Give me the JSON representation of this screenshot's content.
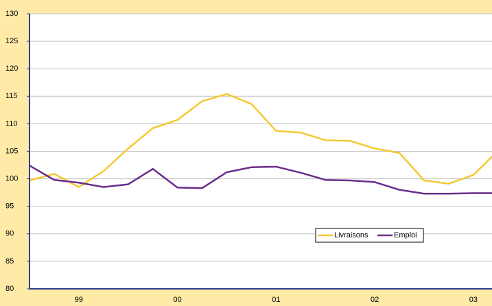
{
  "chart_data": {
    "type": "line",
    "categories": [
      null,
      null,
      "99",
      null,
      null,
      null,
      "00",
      null,
      null,
      null,
      "01",
      null,
      null,
      null,
      "02",
      null,
      null,
      null,
      "03",
      null
    ],
    "series": [
      {
        "name": "Livraisons",
        "color": "#f5c830",
        "values": [
          99.7,
          100.9,
          98.5,
          101.4,
          105.5,
          109.2,
          110.7,
          114.1,
          115.4,
          113.6,
          108.7,
          108.4,
          107.0,
          106.9,
          105.5,
          104.7,
          99.7,
          99.1,
          100.7,
          105.1
        ]
      },
      {
        "name": "Emploi",
        "color": "#6b2c8c",
        "values": [
          102.4,
          99.8,
          99.3,
          98.5,
          99.0,
          101.8,
          98.4,
          98.3,
          101.2,
          102.1,
          102.2,
          101.1,
          99.8,
          99.7,
          99.4,
          98.0,
          97.3,
          97.3,
          97.4,
          97.4
        ]
      }
    ],
    "ylim": [
      80,
      130
    ],
    "yticks": [
      80,
      85,
      90,
      95,
      100,
      105,
      110,
      115,
      120,
      125,
      130
    ],
    "grid": true
  }
}
